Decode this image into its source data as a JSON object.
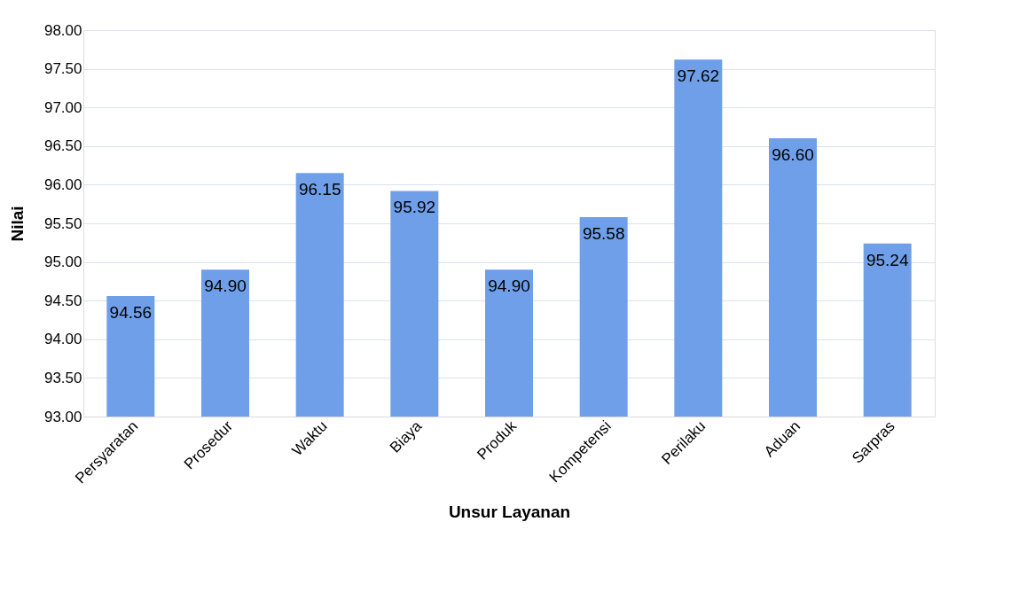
{
  "chart_data": {
    "type": "bar",
    "xlabel": "Unsur Layanan",
    "ylabel": "Nilai",
    "categories": [
      "Persyaratan",
      "Prosedur",
      "Waktu",
      "Biaya",
      "Produk",
      "Kompetensi",
      "Perilaku",
      "Aduan",
      "Sarpras"
    ],
    "values": [
      94.56,
      94.9,
      96.15,
      95.92,
      94.9,
      95.58,
      97.62,
      96.6,
      95.24
    ],
    "value_labels": [
      "94.56",
      "94.90",
      "96.15",
      "95.92",
      "94.90",
      "95.58",
      "97.62",
      "96.60",
      "95.24"
    ],
    "color": "#6f9fe8",
    "ylim": [
      93,
      98
    ],
    "yticks": [
      {
        "value": 93,
        "label": "93.00"
      },
      {
        "value": 93.5,
        "label": "93.50"
      },
      {
        "value": 94,
        "label": "94.00"
      },
      {
        "value": 94.5,
        "label": "94.50"
      },
      {
        "value": 95,
        "label": "95.00"
      },
      {
        "value": 95.5,
        "label": "95.50"
      },
      {
        "value": 96,
        "label": "96.00"
      },
      {
        "value": 96.5,
        "label": "96.50"
      },
      {
        "value": 97,
        "label": "97.00"
      },
      {
        "value": 97.5,
        "label": "97.50"
      },
      {
        "value": 98,
        "label": "98.00"
      }
    ],
    "grid": "y"
  }
}
